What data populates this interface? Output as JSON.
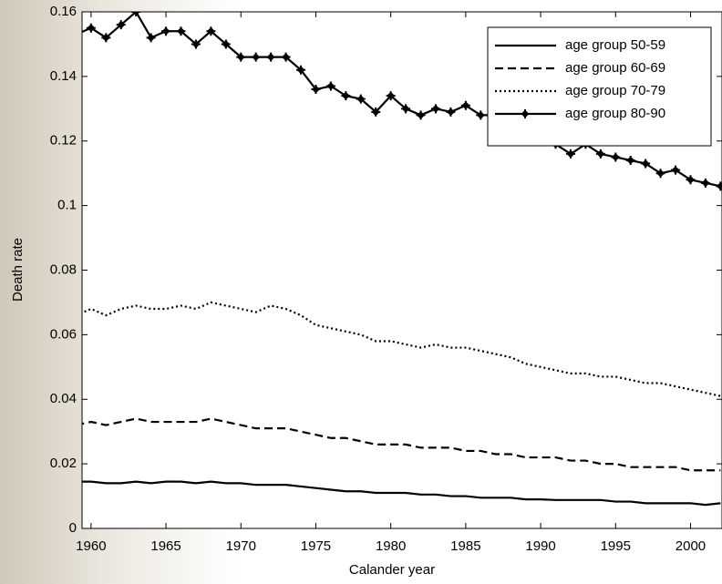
{
  "chart_data": {
    "type": "line",
    "x_label": "Calander year",
    "y_label": "Death rate",
    "x": [
      1959,
      1960,
      1961,
      1962,
      1963,
      1964,
      1965,
      1966,
      1967,
      1968,
      1969,
      1970,
      1971,
      1972,
      1973,
      1974,
      1975,
      1976,
      1977,
      1978,
      1979,
      1980,
      1981,
      1982,
      1983,
      1984,
      1985,
      1986,
      1987,
      1988,
      1989,
      1990,
      1991,
      1992,
      1993,
      1994,
      1995,
      1996,
      1997,
      1998,
      1999,
      2000,
      2001,
      2002
    ],
    "xlim": [
      1959.4,
      2002.1
    ],
    "xticks": [
      1960,
      1965,
      1970,
      1975,
      1980,
      1985,
      1990,
      1995,
      2000
    ],
    "ylim": [
      0,
      0.16
    ],
    "yticks": [
      0,
      0.02,
      0.04,
      0.06,
      0.08,
      0.1,
      0.12,
      0.14,
      0.16
    ],
    "legend": "upper right",
    "series": [
      {
        "name": "age group 50-59",
        "color": "#000000",
        "dash": "none",
        "marker": "none",
        "values": [
          0.0145,
          0.0145,
          0.014,
          0.014,
          0.0145,
          0.014,
          0.0145,
          0.0145,
          0.014,
          0.0145,
          0.014,
          0.014,
          0.0135,
          0.0135,
          0.0135,
          0.013,
          0.0125,
          0.012,
          0.0115,
          0.0115,
          0.011,
          0.011,
          0.011,
          0.0105,
          0.0105,
          0.01,
          0.01,
          0.0095,
          0.0095,
          0.0095,
          0.009,
          0.009,
          0.0088,
          0.0088,
          0.0088,
          0.0088,
          0.0083,
          0.0083,
          0.0078,
          0.0078,
          0.0078,
          0.0078,
          0.0073,
          0.0078
        ]
      },
      {
        "name": "age group 60-69",
        "color": "#000000",
        "dash": "9,5",
        "marker": "none",
        "values": [
          0.032,
          0.033,
          0.032,
          0.033,
          0.034,
          0.033,
          0.033,
          0.033,
          0.033,
          0.034,
          0.033,
          0.032,
          0.031,
          0.031,
          0.031,
          0.03,
          0.029,
          0.028,
          0.028,
          0.027,
          0.026,
          0.026,
          0.026,
          0.025,
          0.025,
          0.025,
          0.024,
          0.024,
          0.023,
          0.023,
          0.022,
          0.022,
          0.022,
          0.021,
          0.021,
          0.02,
          0.02,
          0.019,
          0.019,
          0.019,
          0.019,
          0.018,
          0.018,
          0.018
        ]
      },
      {
        "name": "age group 70-79",
        "color": "#000000",
        "dash": "2,3",
        "marker": "none",
        "values": [
          0.066,
          0.068,
          0.066,
          0.068,
          0.069,
          0.068,
          0.068,
          0.069,
          0.068,
          0.07,
          0.069,
          0.068,
          0.067,
          0.069,
          0.068,
          0.066,
          0.063,
          0.062,
          0.061,
          0.06,
          0.058,
          0.058,
          0.057,
          0.056,
          0.057,
          0.056,
          0.056,
          0.055,
          0.054,
          0.053,
          0.051,
          0.05,
          0.049,
          0.048,
          0.048,
          0.047,
          0.047,
          0.046,
          0.045,
          0.045,
          0.044,
          0.043,
          0.042,
          0.041
        ]
      },
      {
        "name": "age group 80-90",
        "color": "#000000",
        "dash": "none",
        "marker": "star",
        "values": [
          0.153,
          0.155,
          0.152,
          0.156,
          0.16,
          0.152,
          0.154,
          0.154,
          0.15,
          0.154,
          0.15,
          0.146,
          0.146,
          0.146,
          0.146,
          0.142,
          0.136,
          0.137,
          0.134,
          0.133,
          0.129,
          0.134,
          0.13,
          0.128,
          0.13,
          0.129,
          0.131,
          0.128,
          0.128,
          0.126,
          0.124,
          0.121,
          0.119,
          0.116,
          0.119,
          0.116,
          0.115,
          0.114,
          0.113,
          0.11,
          0.111,
          0.108,
          0.107,
          0.106
        ]
      }
    ]
  }
}
